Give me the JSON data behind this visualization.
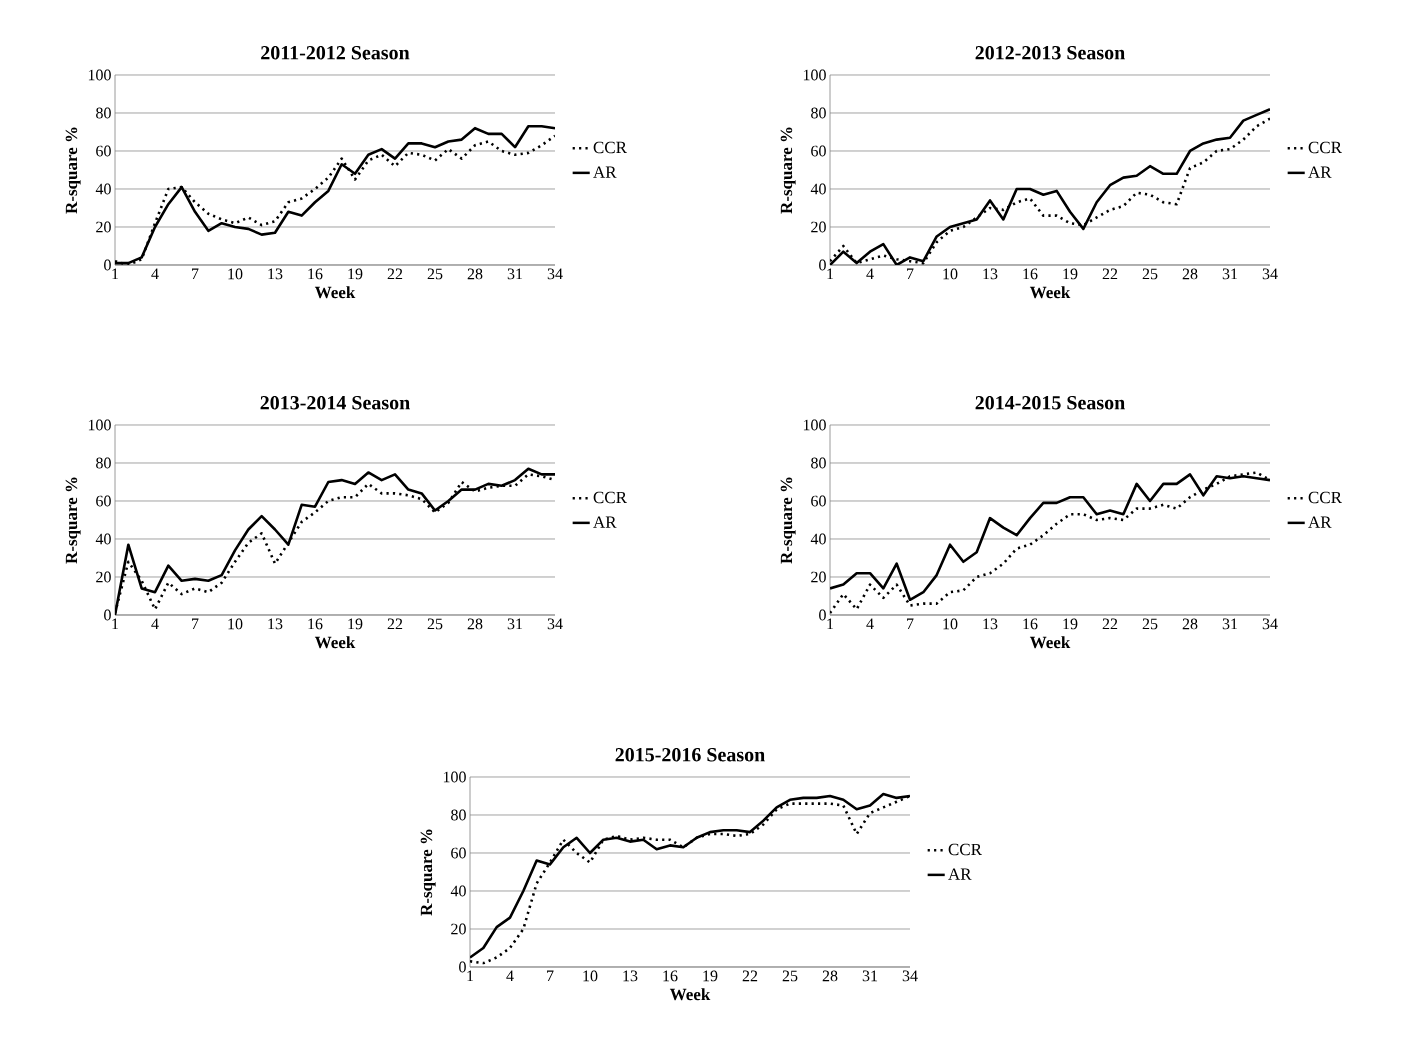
{
  "chart_data": [
    {
      "type": "line",
      "title": "2011-2012 Season",
      "xlabel": "Week",
      "ylabel": "R-square %",
      "x": [
        1,
        2,
        3,
        4,
        5,
        6,
        7,
        8,
        9,
        10,
        11,
        12,
        13,
        14,
        15,
        16,
        17,
        18,
        19,
        20,
        21,
        22,
        23,
        24,
        25,
        26,
        27,
        28,
        29,
        30,
        31,
        32,
        33,
        34
      ],
      "xlim": [
        1,
        34
      ],
      "xticks": [
        1,
        4,
        7,
        10,
        13,
        16,
        19,
        22,
        25,
        28,
        31,
        34
      ],
      "ylim": [
        0,
        100
      ],
      "yticks": [
        0,
        20,
        40,
        60,
        80,
        100
      ],
      "grid": "y",
      "legend": "right",
      "series": [
        {
          "name": "CCR",
          "color": "#000000",
          "line_style": "dotted",
          "values": [
            2,
            0,
            3,
            22,
            40,
            41,
            33,
            27,
            24,
            22,
            25,
            21,
            23,
            33,
            35,
            40,
            46,
            56,
            45,
            55,
            58,
            52,
            59,
            58,
            55,
            61,
            56,
            63,
            65,
            60,
            58,
            59,
            63,
            68
          ]
        },
        {
          "name": "AR",
          "color": "#000000",
          "line_style": "solid",
          "values": [
            1,
            1,
            4,
            20,
            32,
            41,
            28,
            18,
            22,
            20,
            19,
            16,
            17,
            28,
            26,
            33,
            39,
            53,
            48,
            58,
            61,
            56,
            64,
            64,
            62,
            65,
            66,
            72,
            69,
            69,
            62,
            73,
            73,
            72
          ]
        }
      ]
    },
    {
      "type": "line",
      "title": "2012-2013 Season",
      "xlabel": "Week",
      "ylabel": "R-square %",
      "x": [
        1,
        2,
        3,
        4,
        5,
        6,
        7,
        8,
        9,
        10,
        11,
        12,
        13,
        14,
        15,
        16,
        17,
        18,
        19,
        20,
        21,
        22,
        23,
        24,
        25,
        26,
        27,
        28,
        29,
        30,
        31,
        32,
        33,
        34
      ],
      "xlim": [
        1,
        34
      ],
      "xticks": [
        1,
        4,
        7,
        10,
        13,
        16,
        19,
        22,
        25,
        28,
        31,
        34
      ],
      "ylim": [
        0,
        100
      ],
      "yticks": [
        0,
        20,
        40,
        60,
        80,
        100
      ],
      "grid": "y",
      "legend": "right",
      "series": [
        {
          "name": "CCR",
          "color": "#000000",
          "line_style": "dotted",
          "values": [
            2,
            10,
            1,
            3,
            5,
            3,
            2,
            1,
            12,
            18,
            20,
            25,
            30,
            29,
            33,
            35,
            26,
            26,
            22,
            21,
            25,
            29,
            31,
            38,
            37,
            33,
            32,
            51,
            54,
            60,
            61,
            66,
            73,
            77
          ]
        },
        {
          "name": "AR",
          "color": "#000000",
          "line_style": "solid",
          "values": [
            0,
            7,
            1,
            7,
            11,
            0,
            4,
            2,
            15,
            20,
            22,
            24,
            34,
            24,
            40,
            40,
            37,
            39,
            28,
            19,
            33,
            42,
            46,
            47,
            52,
            48,
            48,
            60,
            64,
            66,
            67,
            76,
            79,
            82
          ]
        }
      ]
    },
    {
      "type": "line",
      "title": "2013-2014 Season",
      "xlabel": "Week",
      "ylabel": "R-square %",
      "x": [
        1,
        2,
        3,
        4,
        5,
        6,
        7,
        8,
        9,
        10,
        11,
        12,
        13,
        14,
        15,
        16,
        17,
        18,
        19,
        20,
        21,
        22,
        23,
        24,
        25,
        26,
        27,
        28,
        29,
        30,
        31,
        32,
        33,
        34
      ],
      "xlim": [
        1,
        34
      ],
      "xticks": [
        1,
        4,
        7,
        10,
        13,
        16,
        19,
        22,
        25,
        28,
        31,
        34
      ],
      "ylim": [
        0,
        100
      ],
      "yticks": [
        0,
        20,
        40,
        60,
        80,
        100
      ],
      "grid": "y",
      "legend": "right",
      "series": [
        {
          "name": "CCR",
          "color": "#000000",
          "line_style": "dotted",
          "values": [
            1,
            28,
            18,
            3,
            17,
            11,
            14,
            12,
            17,
            28,
            38,
            43,
            27,
            38,
            49,
            54,
            60,
            62,
            62,
            69,
            64,
            64,
            63,
            61,
            54,
            59,
            70,
            65,
            67,
            68,
            68,
            74,
            73,
            71
          ]
        },
        {
          "name": "AR",
          "color": "#000000",
          "line_style": "solid",
          "values": [
            0,
            37,
            14,
            12,
            26,
            18,
            19,
            18,
            21,
            34,
            45,
            52,
            45,
            37,
            58,
            57,
            70,
            71,
            69,
            75,
            71,
            74,
            66,
            64,
            55,
            60,
            66,
            66,
            69,
            68,
            71,
            77,
            74,
            74
          ]
        }
      ]
    },
    {
      "type": "line",
      "title": "2014-2015 Season",
      "xlabel": "Week",
      "ylabel": "R-square %",
      "x": [
        1,
        2,
        3,
        4,
        5,
        6,
        7,
        8,
        9,
        10,
        11,
        12,
        13,
        14,
        15,
        16,
        17,
        18,
        19,
        20,
        21,
        22,
        23,
        24,
        25,
        26,
        27,
        28,
        29,
        30,
        31,
        32,
        33,
        34
      ],
      "xlim": [
        1,
        34
      ],
      "xticks": [
        1,
        4,
        7,
        10,
        13,
        16,
        19,
        22,
        25,
        28,
        31,
        34
      ],
      "ylim": [
        0,
        100
      ],
      "yticks": [
        0,
        20,
        40,
        60,
        80,
        100
      ],
      "grid": "y",
      "legend": "right",
      "series": [
        {
          "name": "CCR",
          "color": "#000000",
          "line_style": "dotted",
          "values": [
            1,
            11,
            3,
            16,
            9,
            16,
            5,
            6,
            6,
            12,
            13,
            20,
            22,
            27,
            35,
            37,
            42,
            48,
            53,
            53,
            50,
            51,
            50,
            56,
            56,
            58,
            56,
            62,
            66,
            69,
            73,
            74,
            75,
            71
          ]
        },
        {
          "name": "AR",
          "color": "#000000",
          "line_style": "solid",
          "values": [
            14,
            16,
            22,
            22,
            14,
            27,
            8,
            12,
            21,
            37,
            28,
            33,
            51,
            46,
            42,
            51,
            59,
            59,
            62,
            62,
            53,
            55,
            53,
            69,
            60,
            69,
            69,
            74,
            63,
            73,
            72,
            73,
            72,
            71
          ]
        }
      ]
    },
    {
      "type": "line",
      "title": "2015-2016 Season",
      "xlabel": "Week",
      "ylabel": "R-square %",
      "x": [
        1,
        2,
        3,
        4,
        5,
        6,
        7,
        8,
        9,
        10,
        11,
        12,
        13,
        14,
        15,
        16,
        17,
        18,
        19,
        20,
        21,
        22,
        23,
        24,
        25,
        26,
        27,
        28,
        29,
        30,
        31,
        32,
        33,
        34
      ],
      "xlim": [
        1,
        34
      ],
      "xticks": [
        1,
        4,
        7,
        10,
        13,
        16,
        19,
        22,
        25,
        28,
        31,
        34
      ],
      "ylim": [
        0,
        100
      ],
      "yticks": [
        0,
        20,
        40,
        60,
        80,
        100
      ],
      "grid": "y",
      "legend": "right",
      "series": [
        {
          "name": "CCR",
          "color": "#000000",
          "line_style": "dotted",
          "values": [
            3,
            2,
            5,
            10,
            20,
            44,
            55,
            67,
            60,
            55,
            67,
            69,
            67,
            68,
            67,
            67,
            63,
            68,
            70,
            70,
            69,
            70,
            75,
            83,
            86,
            86,
            86,
            86,
            85,
            70,
            81,
            84,
            87,
            90
          ]
        },
        {
          "name": "AR",
          "color": "#000000",
          "line_style": "solid",
          "values": [
            5,
            10,
            21,
            26,
            40,
            56,
            54,
            63,
            68,
            60,
            67,
            68,
            66,
            67,
            62,
            64,
            63,
            68,
            71,
            72,
            72,
            71,
            77,
            84,
            88,
            89,
            89,
            90,
            88,
            83,
            85,
            91,
            89,
            90
          ]
        }
      ]
    }
  ]
}
